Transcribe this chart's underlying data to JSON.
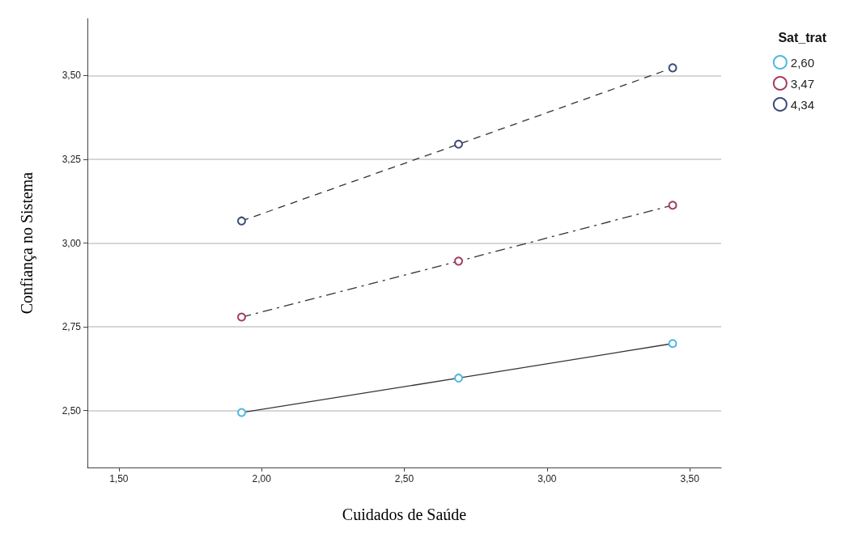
{
  "chart_data": {
    "type": "line",
    "xlabel": "Cuidados de Saúde",
    "ylabel": "Confiança no Sistema",
    "legend_title": "Sat_trat",
    "x": [
      1.93,
      2.69,
      3.44
    ],
    "series": [
      {
        "name": "2,60",
        "color": "#4db8e0",
        "values": [
          2.494,
          2.597,
          2.7
        ],
        "line_style": "solid"
      },
      {
        "name": "3,47",
        "color": "#a33c5e",
        "values": [
          2.779,
          2.946,
          3.113
        ],
        "line_style": "dashdot"
      },
      {
        "name": "4,34",
        "color": "#3d4a78",
        "values": [
          3.066,
          3.295,
          3.523
        ],
        "line_style": "dashed"
      }
    ],
    "xlim": [
      1.39,
      3.61
    ],
    "xticks": [
      {
        "value": 1.5,
        "label": "1,50"
      },
      {
        "value": 2,
        "label": "2,00"
      },
      {
        "value": 2.5,
        "label": "2,50"
      },
      {
        "value": 3,
        "label": "3,00"
      },
      {
        "value": 3.5,
        "label": "3,50"
      }
    ],
    "ylim": [
      2.33,
      3.67
    ],
    "yticks": [
      {
        "value": 2.5,
        "label": "2,50"
      },
      {
        "value": 2.75,
        "label": "2,75"
      },
      {
        "value": 3,
        "label": "3,00"
      },
      {
        "value": 3.25,
        "label": "3,25"
      },
      {
        "value": 3.5,
        "label": "3,50"
      }
    ],
    "grid": "y",
    "legend": "top right",
    "marker": "circle"
  }
}
